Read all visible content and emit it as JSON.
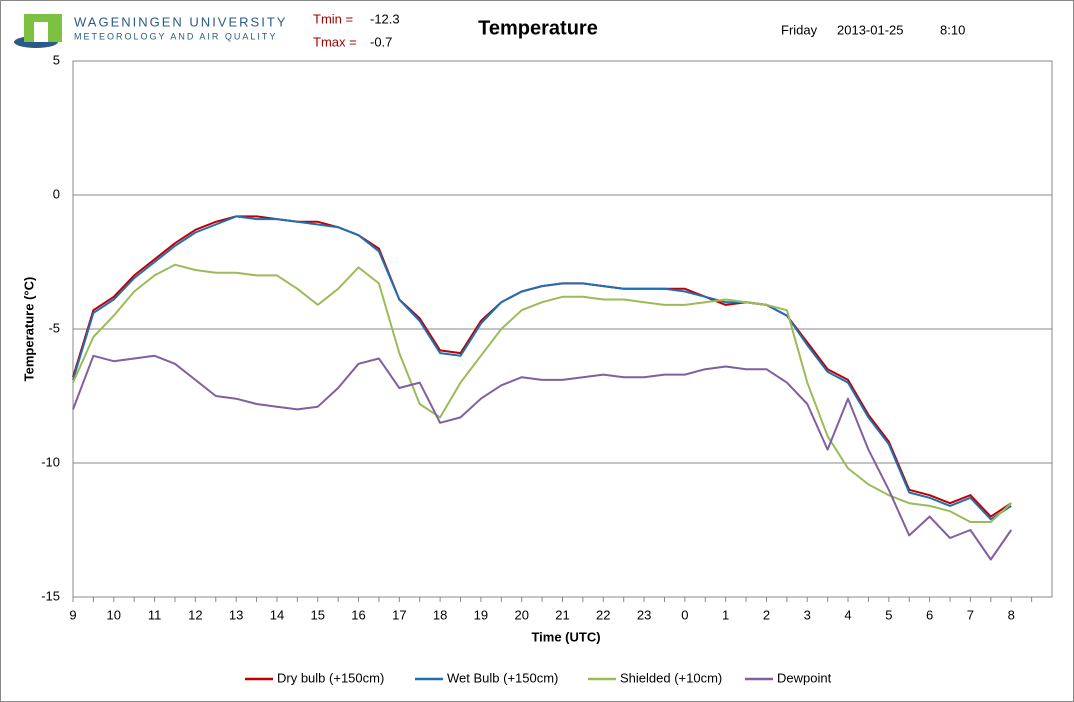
{
  "header": {
    "org": "WAGENINGEN UNIVERSITY",
    "dept": "METEOROLOGY AND AIR QUALITY",
    "tmin_label": "Tmin =",
    "tmin": -12.3,
    "tmax_label": "Tmax =",
    "tmax": -0.7,
    "day": "Friday",
    "date": "2013-01-25",
    "time": "8:10"
  },
  "chart_data": {
    "type": "line",
    "title": "Temperature",
    "x_label": "Time (UTC)",
    "y_label": "Temperature (°C)",
    "categories": [
      "9",
      null,
      "10",
      null,
      "11",
      null,
      "12",
      null,
      "13",
      null,
      "14",
      null,
      "15",
      null,
      "16",
      null,
      "17",
      null,
      "18",
      null,
      "19",
      null,
      "20",
      null,
      "21",
      null,
      "22",
      null,
      "23",
      null,
      "0",
      null,
      "1",
      null,
      "2",
      null,
      "3",
      null,
      "4",
      null,
      "5",
      null,
      "6",
      null,
      "7",
      null,
      "8",
      null
    ],
    "ylim": [
      -15,
      5
    ],
    "yticks": [
      5,
      0,
      -5,
      -10,
      -15
    ],
    "grid": true,
    "series": [
      {
        "name": "Dry bulb (+150cm)",
        "color": "#c00000",
        "values": [
          -6.8,
          -4.3,
          -3.8,
          -3.0,
          -2.4,
          -1.8,
          -1.3,
          -1.0,
          -0.8,
          -0.8,
          -0.9,
          -1.0,
          -1.0,
          -1.2,
          -1.5,
          -2.0,
          -3.9,
          -4.6,
          -5.8,
          -5.9,
          -4.7,
          -4.0,
          -3.6,
          -3.4,
          -3.3,
          -3.3,
          -3.4,
          -3.5,
          -3.5,
          -3.5,
          -3.5,
          -3.8,
          -4.1,
          -4.0,
          -4.1,
          -4.5,
          -5.5,
          -6.5,
          -6.9,
          -8.2,
          -9.2,
          -11.0,
          -11.2,
          -11.5,
          -11.2,
          -12.0,
          -11.5,
          null
        ]
      },
      {
        "name": "Wet Bulb (+150cm)",
        "color": "#1f6fb5",
        "values": [
          -6.9,
          -4.4,
          -3.9,
          -3.1,
          -2.5,
          -1.9,
          -1.4,
          -1.1,
          -0.8,
          -0.9,
          -0.9,
          -1.0,
          -1.1,
          -1.2,
          -1.5,
          -2.1,
          -3.9,
          -4.7,
          -5.9,
          -6.0,
          -4.8,
          -4.0,
          -3.6,
          -3.4,
          -3.3,
          -3.3,
          -3.4,
          -3.5,
          -3.5,
          -3.5,
          -3.6,
          -3.8,
          -4.0,
          -4.0,
          -4.1,
          -4.5,
          -5.6,
          -6.6,
          -7.0,
          -8.3,
          -9.3,
          -11.1,
          -11.3,
          -11.6,
          -11.3,
          -12.1,
          -11.6,
          null
        ]
      },
      {
        "name": "Shielded (+10cm)",
        "color": "#9bbb59",
        "values": [
          -7.0,
          -5.3,
          -4.5,
          -3.6,
          -3.0,
          -2.6,
          -2.8,
          -2.9,
          -2.9,
          -3.0,
          -3.0,
          -3.5,
          -4.1,
          -3.5,
          -2.7,
          -3.3,
          -5.9,
          -7.8,
          -8.3,
          -7.0,
          -6.0,
          -5.0,
          -4.3,
          -4.0,
          -3.8,
          -3.8,
          -3.9,
          -3.9,
          -4.0,
          -4.1,
          -4.1,
          -4.0,
          -3.9,
          -4.0,
          -4.1,
          -4.3,
          -7.0,
          -9.0,
          -10.2,
          -10.8,
          -11.2,
          -11.5,
          -11.6,
          -11.8,
          -12.2,
          -12.2,
          -11.5,
          null
        ]
      },
      {
        "name": "Dewpoint",
        "color": "#7f60a0",
        "values": [
          -8.0,
          -6.0,
          -6.2,
          -6.1,
          -6.0,
          -6.3,
          -6.9,
          -7.5,
          -7.6,
          -7.8,
          -7.9,
          -8.0,
          -7.9,
          -7.2,
          -6.3,
          -6.1,
          -7.2,
          -7.0,
          -8.5,
          -8.3,
          -7.6,
          -7.1,
          -6.8,
          -6.9,
          -6.9,
          -6.8,
          -6.7,
          -6.8,
          -6.8,
          -6.7,
          -6.7,
          -6.5,
          -6.4,
          -6.5,
          -6.5,
          -7.0,
          -7.8,
          -9.5,
          -7.6,
          -9.5,
          -11.0,
          -12.7,
          -12.0,
          -12.8,
          -12.5,
          -13.6,
          -12.5,
          null
        ]
      }
    ]
  }
}
